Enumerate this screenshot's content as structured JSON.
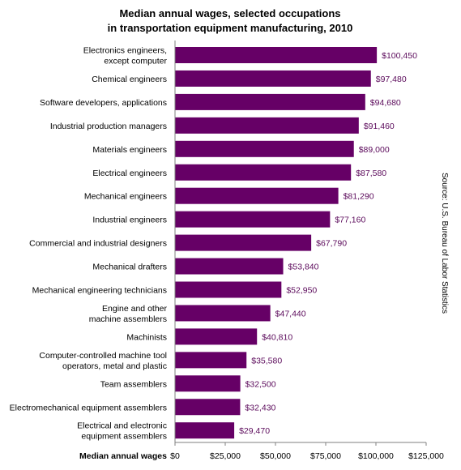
{
  "chart_data": {
    "type": "bar",
    "orientation": "horizontal",
    "title_lines": [
      "Median annual wages, selected occupations",
      "in transportation equipment manufacturing, 2010"
    ],
    "xlabel": "Median annual wages",
    "ylabel": "",
    "source": "Source: U.S. Bureau of Labor Statistics",
    "categories": [
      [
        "Electronics engineers,",
        "except computer"
      ],
      [
        "Chemical engineers"
      ],
      [
        "Software developers, applications"
      ],
      [
        "Industrial production managers"
      ],
      [
        "Materials engineers"
      ],
      [
        "Electrical engineers"
      ],
      [
        "Mechanical engineers"
      ],
      [
        "Industrial engineers"
      ],
      [
        "Commercial and industrial designers"
      ],
      [
        "Mechanical drafters"
      ],
      [
        "Mechanical engineering technicians"
      ],
      [
        "Engine and other",
        "machine assemblers"
      ],
      [
        "Machinists"
      ],
      [
        "Computer-controlled machine tool",
        "operators, metal and plastic"
      ],
      [
        "Team assemblers"
      ],
      [
        "Electromechanical equipment assemblers"
      ],
      [
        "Electrical and electronic",
        "equipment assemblers"
      ]
    ],
    "values": [
      100450,
      97480,
      94680,
      91460,
      89000,
      87580,
      81290,
      77160,
      67790,
      53840,
      52950,
      47440,
      40810,
      35580,
      32500,
      32430,
      29470
    ],
    "value_labels": [
      "$100,450",
      "$97,480",
      "$94,680",
      "$91,460",
      "$89,000",
      "$87,580",
      "$81,290",
      "$77,160",
      "$67,790",
      "$53,840",
      "$52,950",
      "$47,440",
      "$40,810",
      "$35,580",
      "$32,500",
      "$32,430",
      "$29,470"
    ],
    "xlim": [
      0,
      125000
    ],
    "ticks": [
      0,
      25000,
      50000,
      75000,
      100000,
      125000
    ],
    "tick_labels": [
      "$0",
      "$25,000",
      "$50,000",
      "$75,000",
      "$100,000",
      "$125,000"
    ],
    "grid": false,
    "legend": "none",
    "bar_color": "#660066",
    "value_label_color": "#5b0a5b"
  }
}
